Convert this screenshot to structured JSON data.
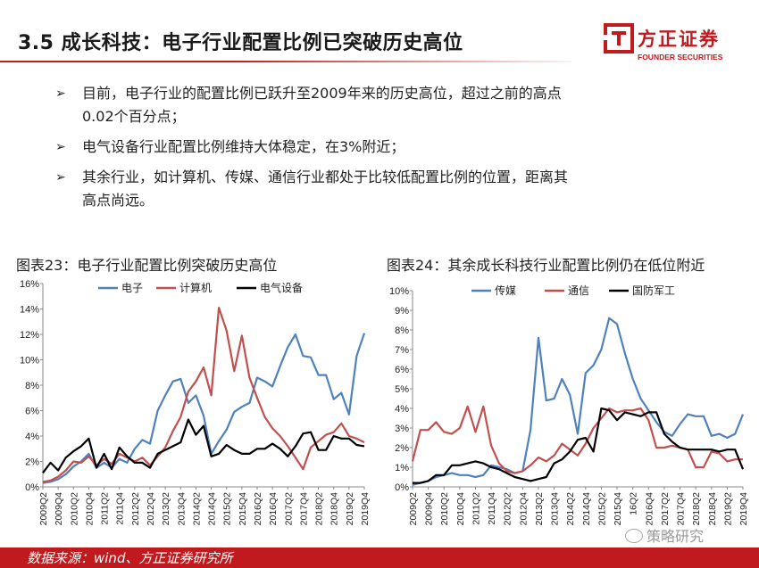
{
  "header": {
    "title": "3.5 成长科技：电子行业配置比例已突破历史高位",
    "logo_cn": "方正证券",
    "logo_en": "FOUNDER SECURITIES"
  },
  "bullets": [
    {
      "line1": "目前，电子行业的配置比例已跃升至2009年来的历史高位，超过之前的高点",
      "line2": "0.02个百分点；"
    },
    {
      "line1": "电气设备行业配置比例维持大体稳定，在3%附近；",
      "line2": ""
    },
    {
      "line1": "其余行业，如计算机、传媒、通信行业都处于比较低配置比例的位置，距离其",
      "line2": "高点尚远。"
    }
  ],
  "chart1_title": "图表23：电子行业配置比例突破历史高位",
  "chart2_title": "图表24：其余成长科技行业配置比例仍在低位附近",
  "footer": {
    "source": "数据来源：wind、方正证券研究所",
    "watermark": "策略研究"
  },
  "colors": {
    "brand": "#c0191e",
    "blue": "#4f81bd",
    "red": "#c0504d",
    "black": "#000000"
  },
  "chart_data": [
    {
      "type": "line",
      "title": "图表23：电子行业配置比例突破历史高位",
      "xlabel": "",
      "ylabel": "",
      "ylim": [
        0,
        16
      ],
      "yticks": [
        "0%",
        "2%",
        "4%",
        "6%",
        "8%",
        "10%",
        "12%",
        "14%",
        "16%"
      ],
      "x": [
        "2009Q2",
        "2009Q3",
        "2009Q4",
        "2010Q1",
        "2010Q2",
        "2010Q3",
        "2010Q4",
        "2011Q1",
        "2011Q2",
        "2011Q3",
        "2011Q4",
        "2012Q1",
        "2012Q2",
        "2012Q3",
        "2012Q4",
        "2013Q1",
        "2013Q2",
        "2013Q3",
        "2013Q4",
        "2014Q1",
        "2014Q2",
        "2014Q3",
        "2014Q4",
        "2015Q1",
        "2015Q2",
        "2015Q3",
        "2015Q4",
        "2016Q1",
        "2016Q2",
        "2016Q3",
        "2016Q4",
        "2017Q1",
        "2017Q2",
        "2017Q3",
        "2017Q4",
        "2018Q1",
        "2018Q2",
        "2018Q3",
        "2018Q4",
        "2019Q1",
        "2019Q2",
        "2019Q3",
        "2019Q4"
      ],
      "xtick_labels": [
        "2009Q2",
        "2009Q4",
        "2010Q2",
        "2010Q4",
        "2011Q2",
        "2011Q4",
        "2012Q2",
        "2012Q4",
        "2013Q2",
        "2013Q4",
        "2014Q2",
        "2014Q4",
        "2015Q2",
        "2015Q4",
        "2016Q2",
        "2016Q4",
        "2017Q2",
        "2017Q4",
        "2018Q2",
        "2018Q4",
        "2019Q2",
        "2019Q4"
      ],
      "legend_position": "top",
      "series": [
        {
          "name": "电子",
          "color": "#4f81bd",
          "values": [
            0.3,
            0.4,
            0.6,
            1.0,
            1.6,
            2.0,
            2.6,
            1.5,
            1.9,
            1.5,
            2.2,
            1.9,
            3.0,
            3.7,
            3.4,
            6.0,
            7.2,
            8.3,
            8.5,
            6.6,
            7.2,
            5.6,
            2.6,
            3.6,
            4.5,
            5.9,
            6.3,
            6.6,
            8.6,
            8.3,
            7.9,
            9.5,
            11.0,
            12.0,
            10.3,
            10.2,
            8.8,
            8.8,
            6.9,
            7.4,
            5.7,
            10.3,
            12.1
          ]
        },
        {
          "name": "计算机",
          "color": "#c0504d",
          "values": [
            0.4,
            0.5,
            0.8,
            1.3,
            2.0,
            1.9,
            2.4,
            1.7,
            2.2,
            1.8,
            2.6,
            2.3,
            2.0,
            2.3,
            1.7,
            2.4,
            3.1,
            4.4,
            5.5,
            7.5,
            8.3,
            9.4,
            7.2,
            14.1,
            12.3,
            9.1,
            11.9,
            8.6,
            7.0,
            5.5,
            4.6,
            4.0,
            3.2,
            2.3,
            1.4,
            3.1,
            3.6,
            4.1,
            4.3,
            5.0,
            4.0,
            3.8,
            3.5
          ]
        },
        {
          "name": "电气设备",
          "color": "#000000",
          "values": [
            1.1,
            1.9,
            1.3,
            2.3,
            2.8,
            3.2,
            3.8,
            1.5,
            2.6,
            1.4,
            3.1,
            2.4,
            1.9,
            1.9,
            1.5,
            2.6,
            2.9,
            3.2,
            3.5,
            5.3,
            4.1,
            4.8,
            2.4,
            2.6,
            3.3,
            2.9,
            2.6,
            2.6,
            3.0,
            3.0,
            3.4,
            3.0,
            2.4,
            3.2,
            4.2,
            4.3,
            2.9,
            2.9,
            4.0,
            3.8,
            3.8,
            3.3,
            3.2
          ]
        }
      ]
    },
    {
      "type": "line",
      "title": "图表24：其余成长科技行业配置比例仍在低位附近",
      "xlabel": "",
      "ylabel": "",
      "ylim": [
        0,
        10
      ],
      "yticks": [
        "0%",
        "1%",
        "2%",
        "3%",
        "4%",
        "5%",
        "6%",
        "7%",
        "8%",
        "9%",
        "10%"
      ],
      "x": [
        "2009Q2",
        "2009Q3",
        "2009Q4",
        "2010Q1",
        "2010Q2",
        "2010Q3",
        "2010Q4",
        "2011Q1",
        "2011Q2",
        "2011Q3",
        "2011Q4",
        "2012Q1",
        "2012Q2",
        "2012Q3",
        "2012Q4",
        "2013Q1",
        "2013Q2",
        "2013Q3",
        "2013Q4",
        "2014Q1",
        "2014Q2",
        "2014Q3",
        "2014Q4",
        "2015Q1",
        "2015Q2",
        "2015Q3",
        "2015Q4",
        "2016Q1",
        "2016Q2",
        "2016Q3",
        "2016Q4",
        "2017Q1",
        "2017Q2",
        "2017Q3",
        "2017Q4",
        "2018Q1",
        "2018Q2",
        "2018Q3",
        "2018Q4",
        "2019Q1",
        "2019Q2",
        "2019Q3",
        "2019Q4"
      ],
      "xtick_labels": [
        "2009Q2",
        "2009Q4",
        "2010Q2",
        "2010Q4",
        "2011Q2",
        "2011Q4",
        "2012Q2",
        "2012Q4",
        "2013Q2",
        "2013Q4",
        "2014Q2",
        "2014Q4",
        "2015Q2",
        "2015Q4",
        "16Q2",
        "2016Q4",
        "2017Q2",
        "2017Q4",
        "2018Q2",
        "2018Q4",
        "2019Q2",
        "2019Q4"
      ],
      "legend_position": "top",
      "series": [
        {
          "name": "传媒",
          "color": "#4f81bd",
          "values": [
            0.1,
            0.2,
            0.3,
            0.5,
            0.6,
            0.7,
            0.6,
            0.6,
            0.5,
            0.6,
            1.1,
            1.0,
            0.9,
            0.7,
            0.8,
            2.9,
            7.6,
            4.4,
            4.5,
            5.5,
            4.7,
            2.7,
            5.8,
            6.2,
            7.0,
            8.6,
            8.3,
            6.8,
            5.5,
            4.5,
            3.9,
            3.3,
            2.8,
            2.6,
            3.2,
            3.7,
            3.6,
            3.6,
            2.6,
            2.7,
            2.5,
            2.7,
            3.7
          ]
        },
        {
          "name": "通信",
          "color": "#c0504d",
          "values": [
            1.3,
            2.9,
            2.9,
            3.3,
            2.8,
            2.7,
            3.0,
            4.1,
            2.8,
            4.1,
            2.1,
            1.2,
            0.8,
            0.7,
            0.8,
            1.1,
            1.5,
            1.3,
            1.6,
            2.2,
            1.9,
            1.6,
            2.2,
            3.0,
            3.5,
            4.0,
            3.8,
            3.9,
            3.9,
            4.0,
            3.4,
            2.0,
            2.0,
            2.1,
            2.0,
            1.9,
            1.0,
            1.0,
            1.8,
            1.7,
            1.3,
            1.4,
            1.4
          ]
        },
        {
          "name": "国防军工",
          "color": "#000000",
          "values": [
            0.2,
            0.2,
            0.3,
            0.6,
            0.6,
            1.1,
            1.1,
            1.2,
            1.3,
            1.2,
            1.0,
            0.9,
            0.7,
            0.5,
            0.4,
            0.3,
            0.4,
            0.5,
            1.2,
            1.4,
            1.8,
            2.4,
            2.5,
            1.8,
            4.0,
            3.9,
            3.4,
            3.8,
            3.7,
            3.6,
            3.8,
            3.8,
            2.7,
            2.3,
            2.0,
            1.9,
            1.9,
            1.9,
            1.9,
            1.8,
            1.9,
            1.9,
            0.9
          ]
        }
      ]
    }
  ]
}
